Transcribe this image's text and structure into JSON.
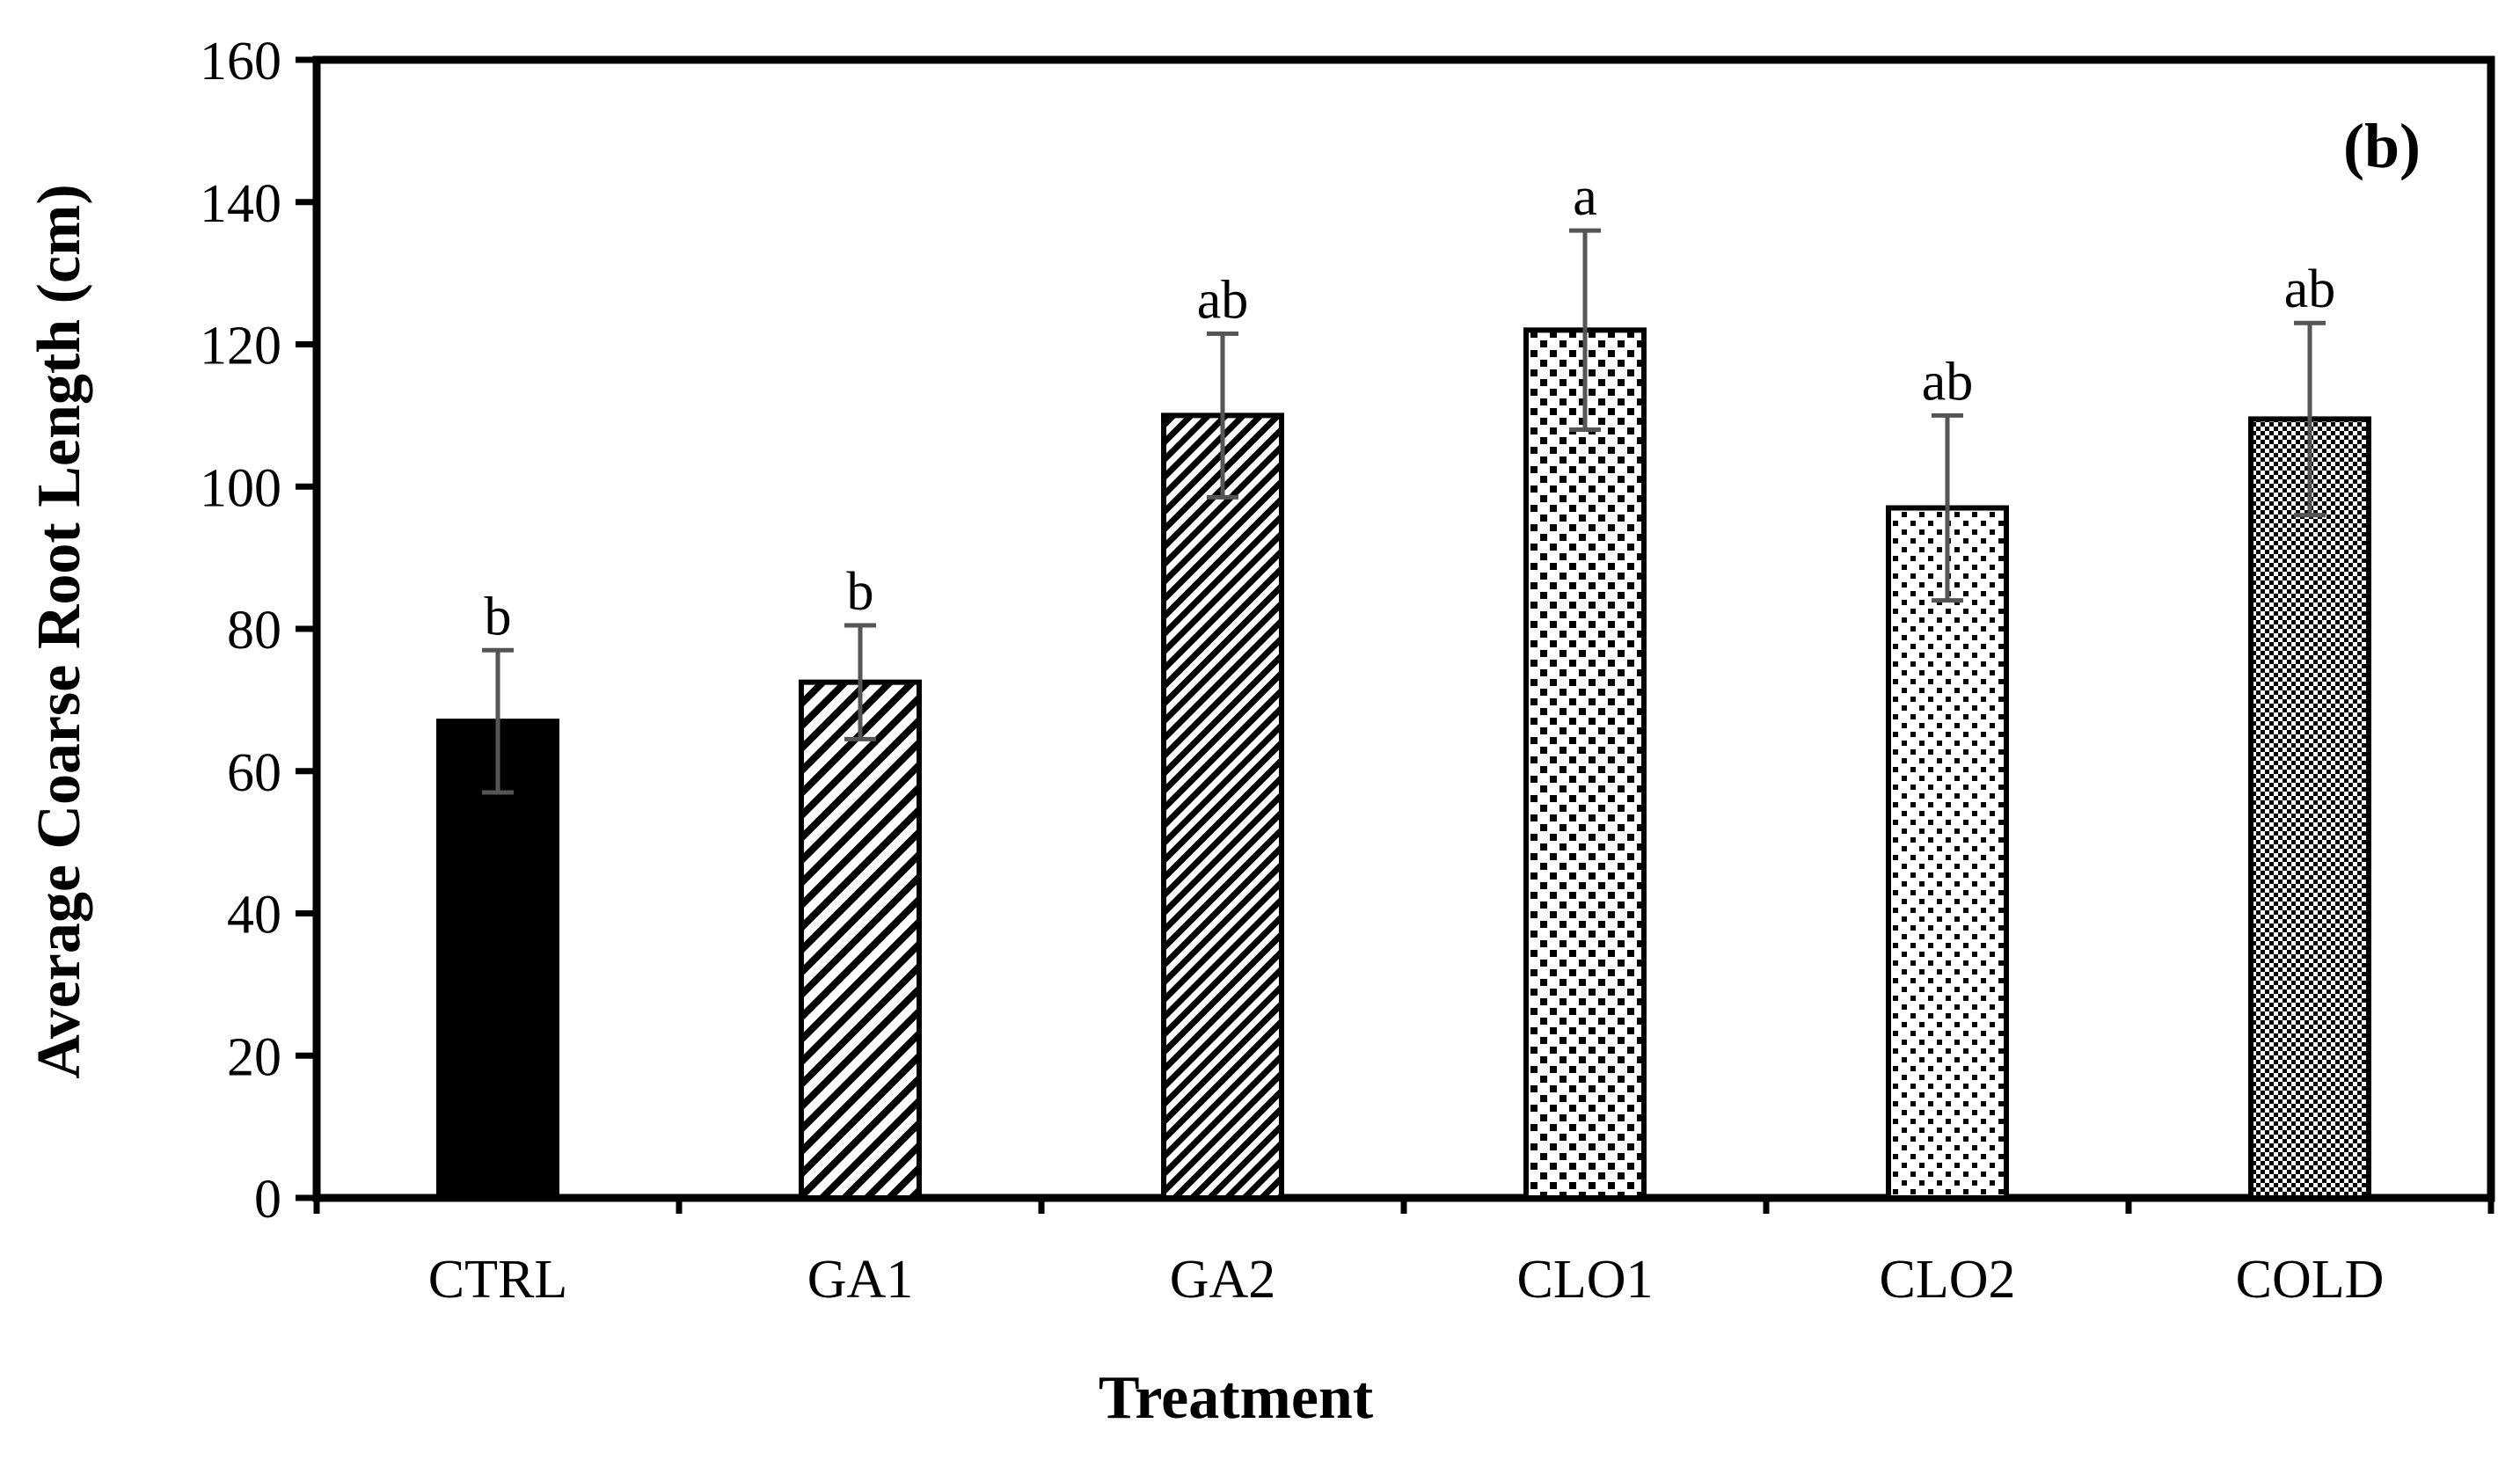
{
  "chart_data": {
    "type": "bar",
    "panel_label": "(b)",
    "title": "",
    "xlabel": "Treatment",
    "ylabel": "Average Coarse Root Length (cm)",
    "ylim": [
      0,
      160
    ],
    "yticks": [
      0,
      20,
      40,
      60,
      80,
      100,
      120,
      140,
      160
    ],
    "categories": [
      "CTRL",
      "GA1",
      "GA2",
      "CLO1",
      "CLO2",
      "COLD"
    ],
    "values": [
      67,
      72.5,
      110,
      122,
      97,
      109.5
    ],
    "error_upper": [
      77,
      80.5,
      121.5,
      136,
      110,
      123
    ],
    "error_lower": [
      57,
      64.5,
      98.5,
      108,
      84,
      96
    ],
    "significance": [
      "b",
      "b",
      "ab",
      "a",
      "ab",
      "ab"
    ],
    "fills": [
      "solid-black",
      "diagonal-stripe",
      "diagonal-stripe-dense",
      "dots-large",
      "dots-small",
      "checker-fine"
    ],
    "grid": false,
    "colors": {
      "bar_outline": "#000000",
      "error_bar": "#555555",
      "axis": "#000000"
    }
  }
}
